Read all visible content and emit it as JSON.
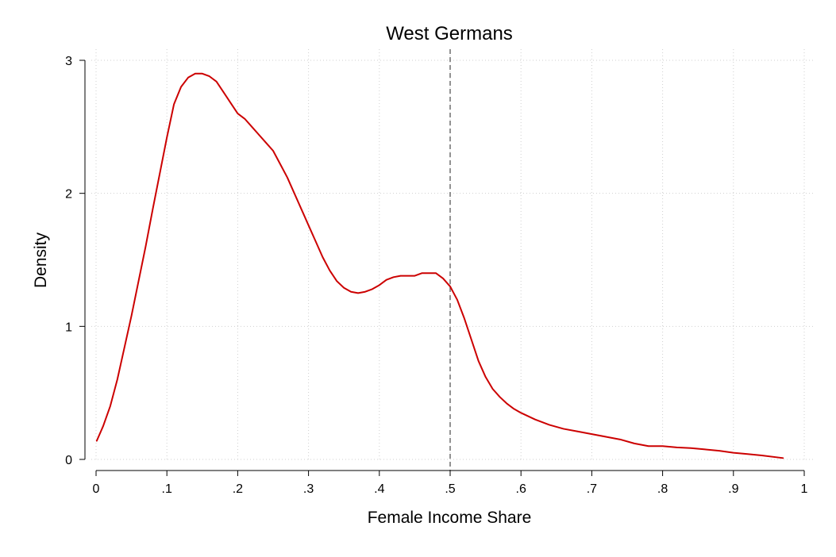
{
  "chart_data": {
    "type": "line",
    "title": "West Germans",
    "xlabel": "Female Income Share",
    "ylabel": "Density",
    "xlim": [
      0,
      1
    ],
    "ylim": [
      0,
      3
    ],
    "xticks": [
      0,
      0.1,
      0.2,
      0.3,
      0.4,
      0.5,
      0.6,
      0.7,
      0.8,
      0.9,
      1
    ],
    "xtick_labels": [
      "0",
      ".1",
      ".2",
      ".3",
      ".4",
      ".5",
      ".6",
      ".7",
      ".8",
      ".9",
      "1"
    ],
    "yticks": [
      0,
      1,
      2,
      3
    ],
    "ytick_labels": [
      "0",
      "1",
      "2",
      "3"
    ],
    "grid": true,
    "reference_line_x": 0.5,
    "series": [
      {
        "color": "#cc0000",
        "x": [
          0.001,
          0.01,
          0.02,
          0.03,
          0.04,
          0.05,
          0.06,
          0.07,
          0.08,
          0.09,
          0.1,
          0.11,
          0.12,
          0.13,
          0.14,
          0.15,
          0.16,
          0.17,
          0.18,
          0.19,
          0.2,
          0.21,
          0.22,
          0.23,
          0.24,
          0.25,
          0.26,
          0.27,
          0.28,
          0.29,
          0.3,
          0.31,
          0.32,
          0.33,
          0.34,
          0.35,
          0.36,
          0.37,
          0.38,
          0.39,
          0.4,
          0.41,
          0.42,
          0.43,
          0.44,
          0.45,
          0.455,
          0.46,
          0.47,
          0.48,
          0.49,
          0.5,
          0.51,
          0.52,
          0.53,
          0.54,
          0.55,
          0.56,
          0.57,
          0.58,
          0.59,
          0.6,
          0.62,
          0.64,
          0.66,
          0.68,
          0.7,
          0.72,
          0.74,
          0.76,
          0.78,
          0.8,
          0.82,
          0.84,
          0.86,
          0.88,
          0.9,
          0.92,
          0.94,
          0.97
        ],
        "y": [
          0.14,
          0.25,
          0.4,
          0.6,
          0.84,
          1.08,
          1.34,
          1.6,
          1.88,
          2.15,
          2.42,
          2.67,
          2.8,
          2.87,
          2.9,
          2.9,
          2.88,
          2.84,
          2.76,
          2.68,
          2.6,
          2.56,
          2.5,
          2.44,
          2.38,
          2.32,
          2.22,
          2.12,
          2.0,
          1.88,
          1.76,
          1.64,
          1.52,
          1.42,
          1.34,
          1.29,
          1.26,
          1.25,
          1.26,
          1.28,
          1.31,
          1.35,
          1.37,
          1.38,
          1.38,
          1.38,
          1.39,
          1.4,
          1.4,
          1.4,
          1.36,
          1.3,
          1.2,
          1.06,
          0.9,
          0.74,
          0.62,
          0.53,
          0.47,
          0.42,
          0.38,
          0.35,
          0.3,
          0.26,
          0.23,
          0.21,
          0.19,
          0.17,
          0.15,
          0.12,
          0.1,
          0.1,
          0.09,
          0.085,
          0.075,
          0.065,
          0.05,
          0.04,
          0.03,
          0.01
        ]
      }
    ]
  }
}
